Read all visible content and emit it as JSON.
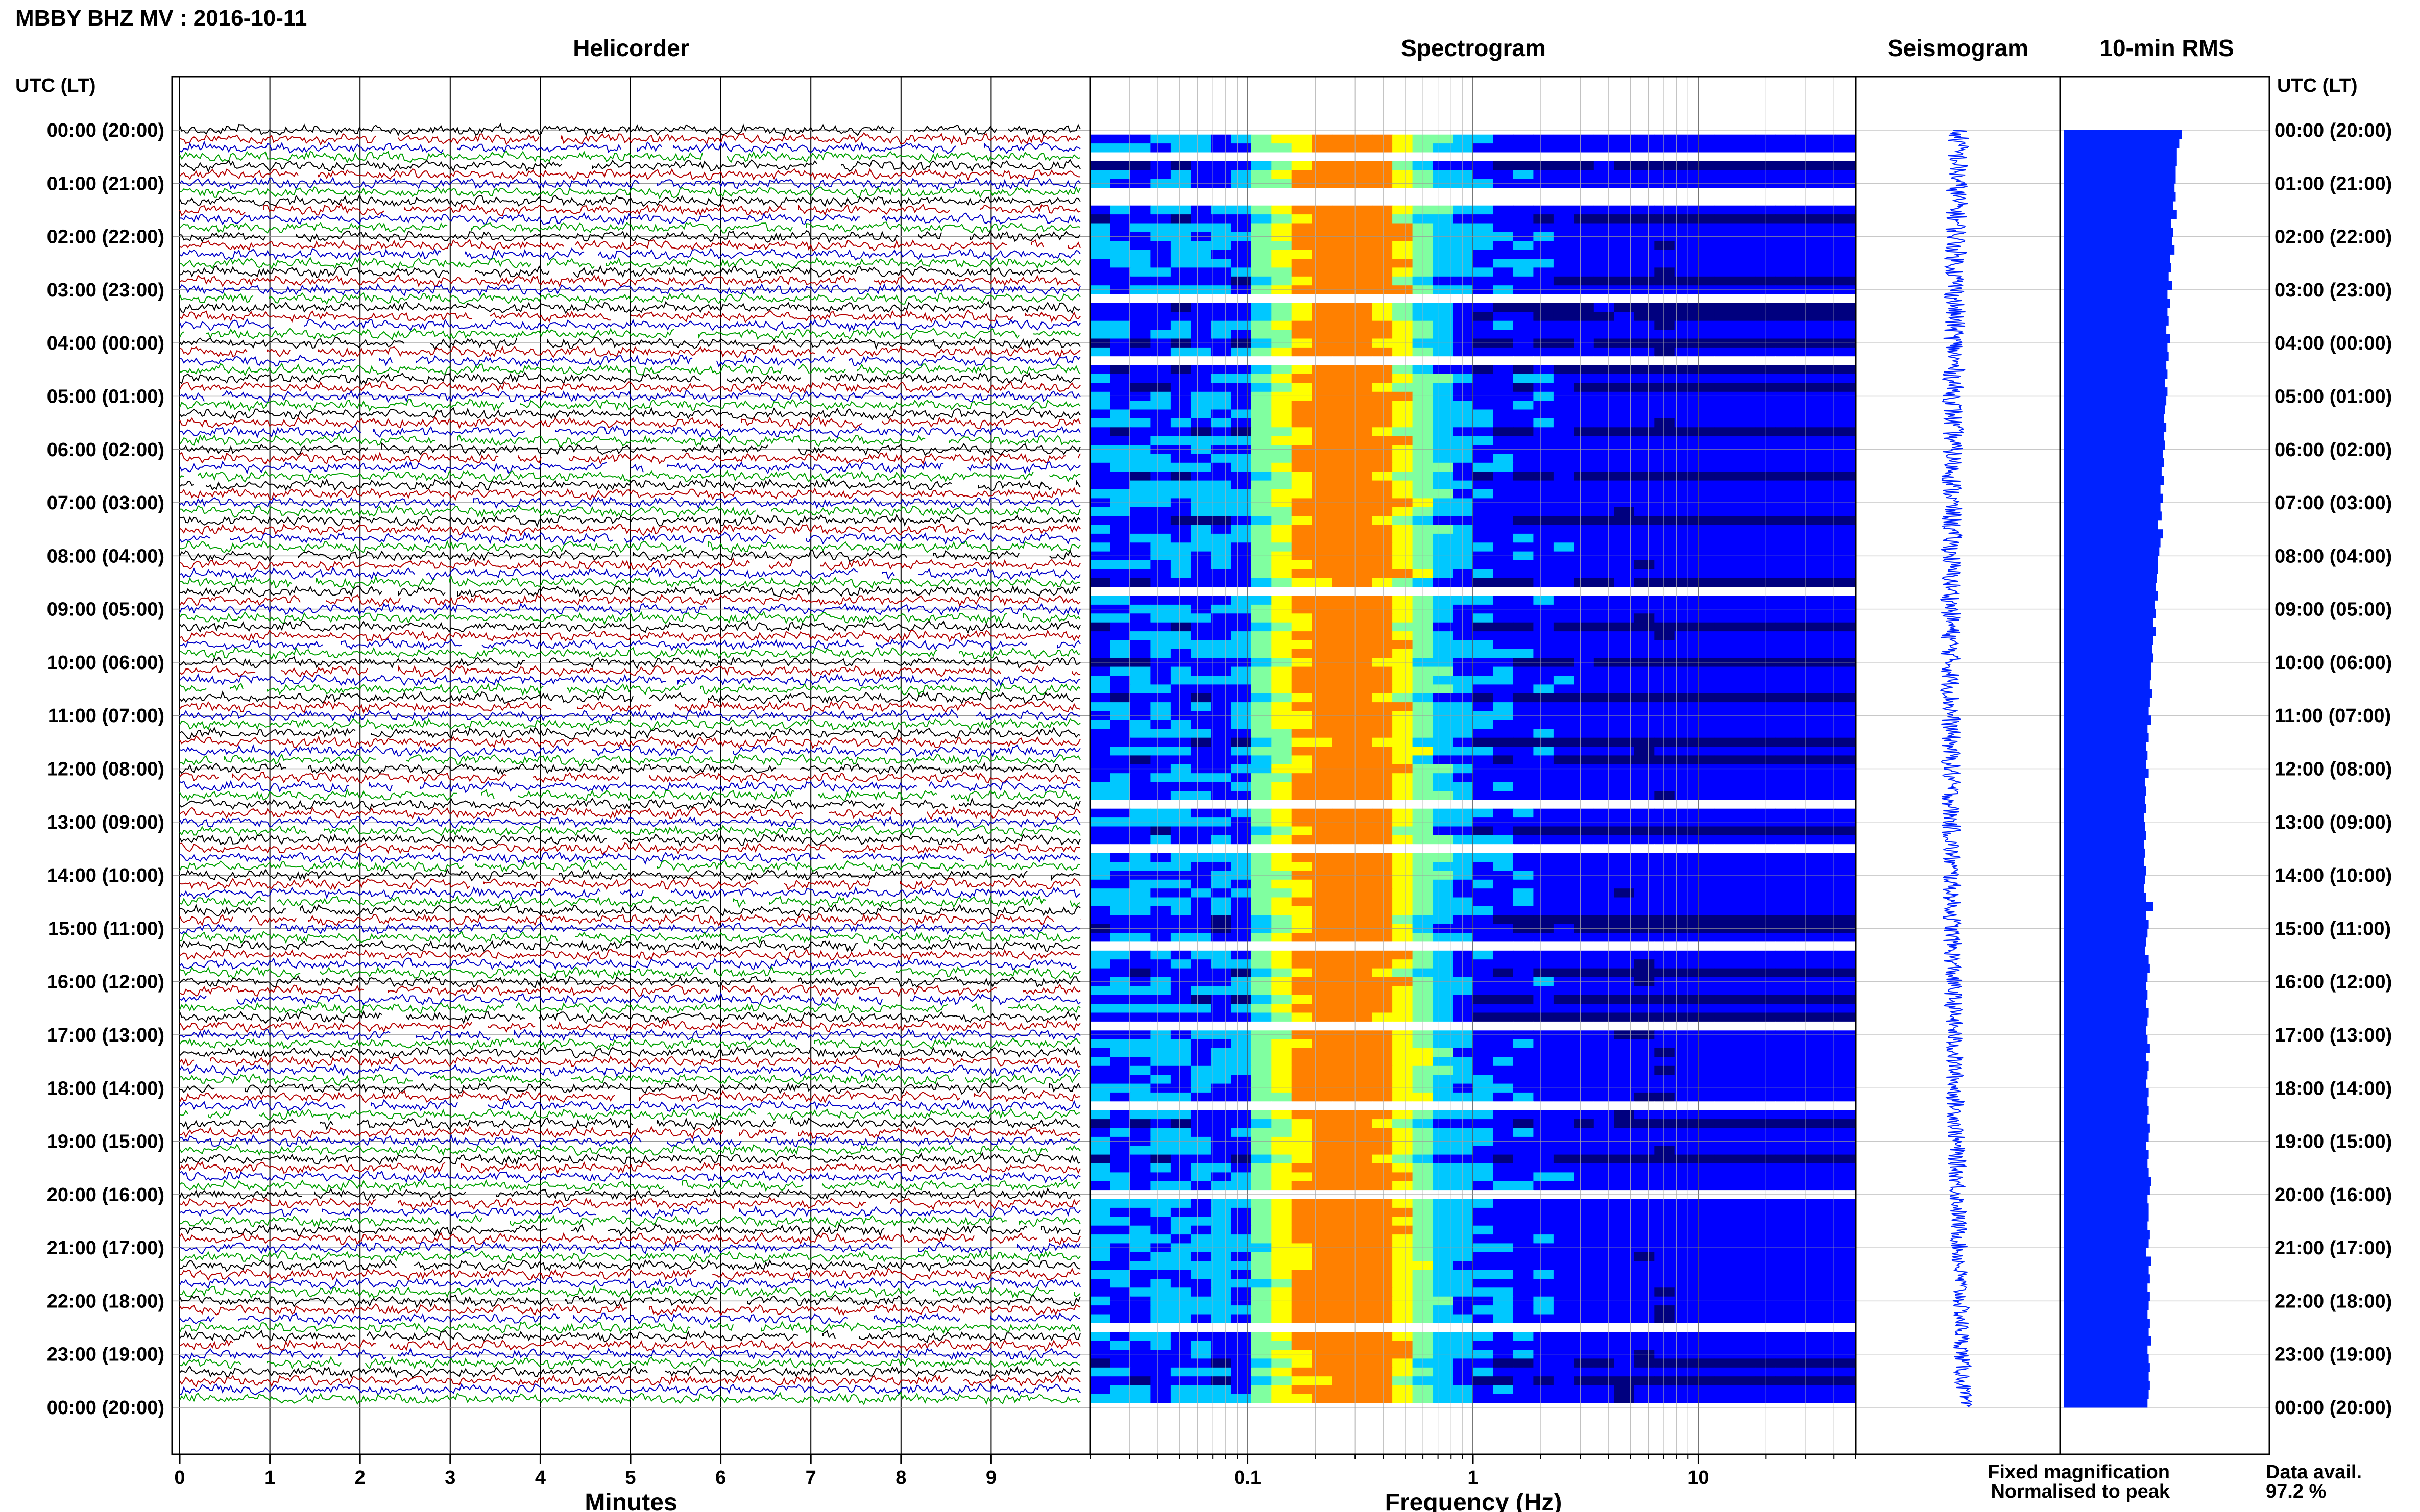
{
  "header": {
    "title": "MBBY BHZ MV : 2016-10-11",
    "left_axis_label": "UTC (LT)",
    "right_axis_label": "UTC (LT)"
  },
  "panels": {
    "helicorder": "Helicorder",
    "spectrogram": "Spectrogram",
    "seismogram": "Seismogram",
    "rms": "10-min RMS"
  },
  "time_labels": [
    "00:00 (20:00)",
    "01:00 (21:00)",
    "02:00 (22:00)",
    "03:00 (23:00)",
    "04:00 (00:00)",
    "05:00 (01:00)",
    "06:00 (02:00)",
    "07:00 (03:00)",
    "08:00 (04:00)",
    "09:00 (05:00)",
    "10:00 (06:00)",
    "11:00 (07:00)",
    "12:00 (08:00)",
    "13:00 (09:00)",
    "14:00 (10:00)",
    "15:00 (11:00)",
    "16:00 (12:00)",
    "17:00 (13:00)",
    "18:00 (14:00)",
    "19:00 (15:00)",
    "20:00 (16:00)",
    "21:00 (17:00)",
    "22:00 (18:00)",
    "23:00 (19:00)",
    "00:00 (20:00)"
  ],
  "footer": {
    "fixed_magnification": "Fixed magnification",
    "normalised_to_peak": "Normalised to peak",
    "data_avail_label": "Data avail.",
    "data_avail_value": "97.2 %"
  },
  "colors": {
    "trace_cycle": [
      "#000000",
      "#b40000",
      "#0000c8",
      "#00a000"
    ],
    "seismogram": "#0022ff",
    "rms_bars": "#0022ff",
    "fixed_magnification": "#0000ff",
    "normalised_to_peak": "#ff0000"
  },
  "chart_data": [
    {
      "type": "line",
      "title": "Helicorder",
      "xlabel": "Minutes",
      "ylabel": "UTC (LT)",
      "x_ticks": [
        0,
        1,
        2,
        3,
        4,
        5,
        6,
        7,
        8,
        9
      ],
      "xlim": [
        0,
        10
      ],
      "rows_per_hour": 6,
      "total_rows": 144,
      "grid": true
    },
    {
      "type": "heatmap",
      "title": "Spectrogram",
      "xlabel": "Frequency (Hz)",
      "x_scale": "log",
      "x_ticks": [
        "0.1",
        "1",
        "10"
      ],
      "xlim": [
        0.02,
        50
      ],
      "peak_energy_band_hz": [
        0.2,
        0.4
      ],
      "colormap": [
        "#00007f",
        "#0000ff",
        "#00c8ff",
        "#80ffa0",
        "#ffff00",
        "#ff8000"
      ]
    },
    {
      "type": "line",
      "title": "Seismogram",
      "xlabel": "",
      "ylabel": ""
    },
    {
      "type": "bar",
      "title": "10-min RMS",
      "orientation": "horizontal",
      "value_description": "relative RMS amplitude per 10-min window (fraction of max)",
      "values": [
        1.0,
        0.98,
        0.96,
        0.96,
        0.95,
        0.95,
        0.94,
        0.95,
        0.93,
        0.96,
        0.91,
        0.93,
        0.92,
        0.94,
        0.9,
        0.91,
        0.89,
        0.92,
        0.88,
        0.9,
        0.88,
        0.89,
        0.87,
        0.9,
        0.88,
        0.89,
        0.87,
        0.88,
        0.86,
        0.88,
        0.87,
        0.86,
        0.85,
        0.87,
        0.85,
        0.86,
        0.84,
        0.85,
        0.83,
        0.85,
        0.82,
        0.84,
        0.82,
        0.83,
        0.8,
        0.84,
        0.82,
        0.81,
        0.8,
        0.8,
        0.79,
        0.78,
        0.8,
        0.77,
        0.78,
        0.76,
        0.78,
        0.76,
        0.75,
        0.76,
        0.74,
        0.74,
        0.73,
        0.75,
        0.73,
        0.72,
        0.74,
        0.71,
        0.72,
        0.7,
        0.71,
        0.7,
        0.72,
        0.69,
        0.7,
        0.69,
        0.7,
        0.68,
        0.69,
        0.7,
        0.68,
        0.69,
        0.68,
        0.7,
        0.69,
        0.68,
        0.7,
        0.76,
        0.7,
        0.72,
        0.71,
        0.7,
        0.69,
        0.72,
        0.73,
        0.71,
        0.7,
        0.71,
        0.7,
        0.72,
        0.71,
        0.7,
        0.71,
        0.73,
        0.7,
        0.72,
        0.71,
        0.7,
        0.72,
        0.71,
        0.72,
        0.71,
        0.73,
        0.72,
        0.7,
        0.72,
        0.71,
        0.72,
        0.74,
        0.73,
        0.71,
        0.72,
        0.72,
        0.71,
        0.73,
        0.72,
        0.7,
        0.74,
        0.72,
        0.73,
        0.71,
        0.73,
        0.72,
        0.71,
        0.73,
        0.72,
        0.74,
        0.71,
        0.72,
        0.73,
        0.72,
        0.73,
        0.72,
        0.71
      ]
    }
  ]
}
